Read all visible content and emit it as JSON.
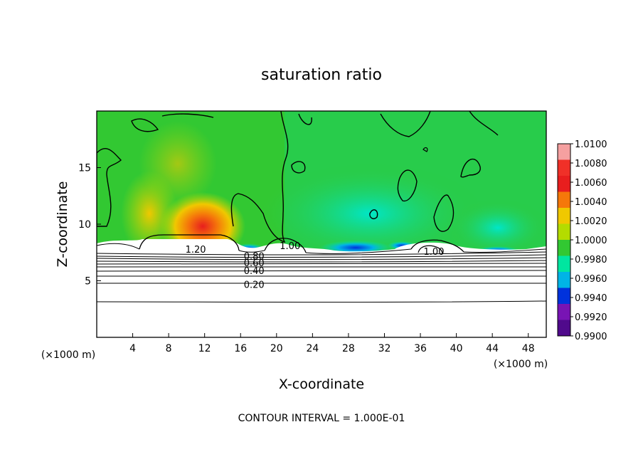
{
  "chart_data": {
    "type": "heatmap",
    "title": "saturation ratio",
    "xlabel": "X-coordinate",
    "ylabel": "Z-coordinate",
    "x_unit": "(×1000 m)",
    "y_unit": "(×1000 m)",
    "xlim": [
      0,
      50
    ],
    "ylim": [
      0,
      20
    ],
    "x_ticks": [
      4,
      8,
      12,
      16,
      20,
      24,
      28,
      32,
      36,
      40,
      44,
      48
    ],
    "y_ticks": [
      5,
      10,
      15
    ],
    "colorbar": {
      "levels": [
        "1.0100",
        "1.0080",
        "1.0060",
        "1.0040",
        "1.0020",
        "1.0000",
        "0.9980",
        "0.9960",
        "0.9940",
        "0.9920",
        "0.9900"
      ],
      "colors": [
        "#f5a0a0",
        "#f03028",
        "#e81e1e",
        "#f5780a",
        "#f0c800",
        "#b4dc00",
        "#32c832",
        "#00e6a0",
        "#00b4e6",
        "#0032dc",
        "#7814b4",
        "#500a8c"
      ]
    },
    "contour_labels": [
      {
        "text": "1.20",
        "x": 11,
        "z": 7.8
      },
      {
        "text": "1.00",
        "x": 21.5,
        "z": 8.1
      },
      {
        "text": "0.80",
        "x": 17.5,
        "z": 7.2
      },
      {
        "text": "0.60",
        "x": 17.5,
        "z": 6.6
      },
      {
        "text": "0.40",
        "x": 17.5,
        "z": 5.9
      },
      {
        "text": "0.20",
        "x": 17.5,
        "z": 4.7
      },
      {
        "text": "1.00",
        "x": 37.5,
        "z": 7.6
      }
    ],
    "contour_interval_text": "CONTOUR INTERVAL = 1.000E-01"
  }
}
